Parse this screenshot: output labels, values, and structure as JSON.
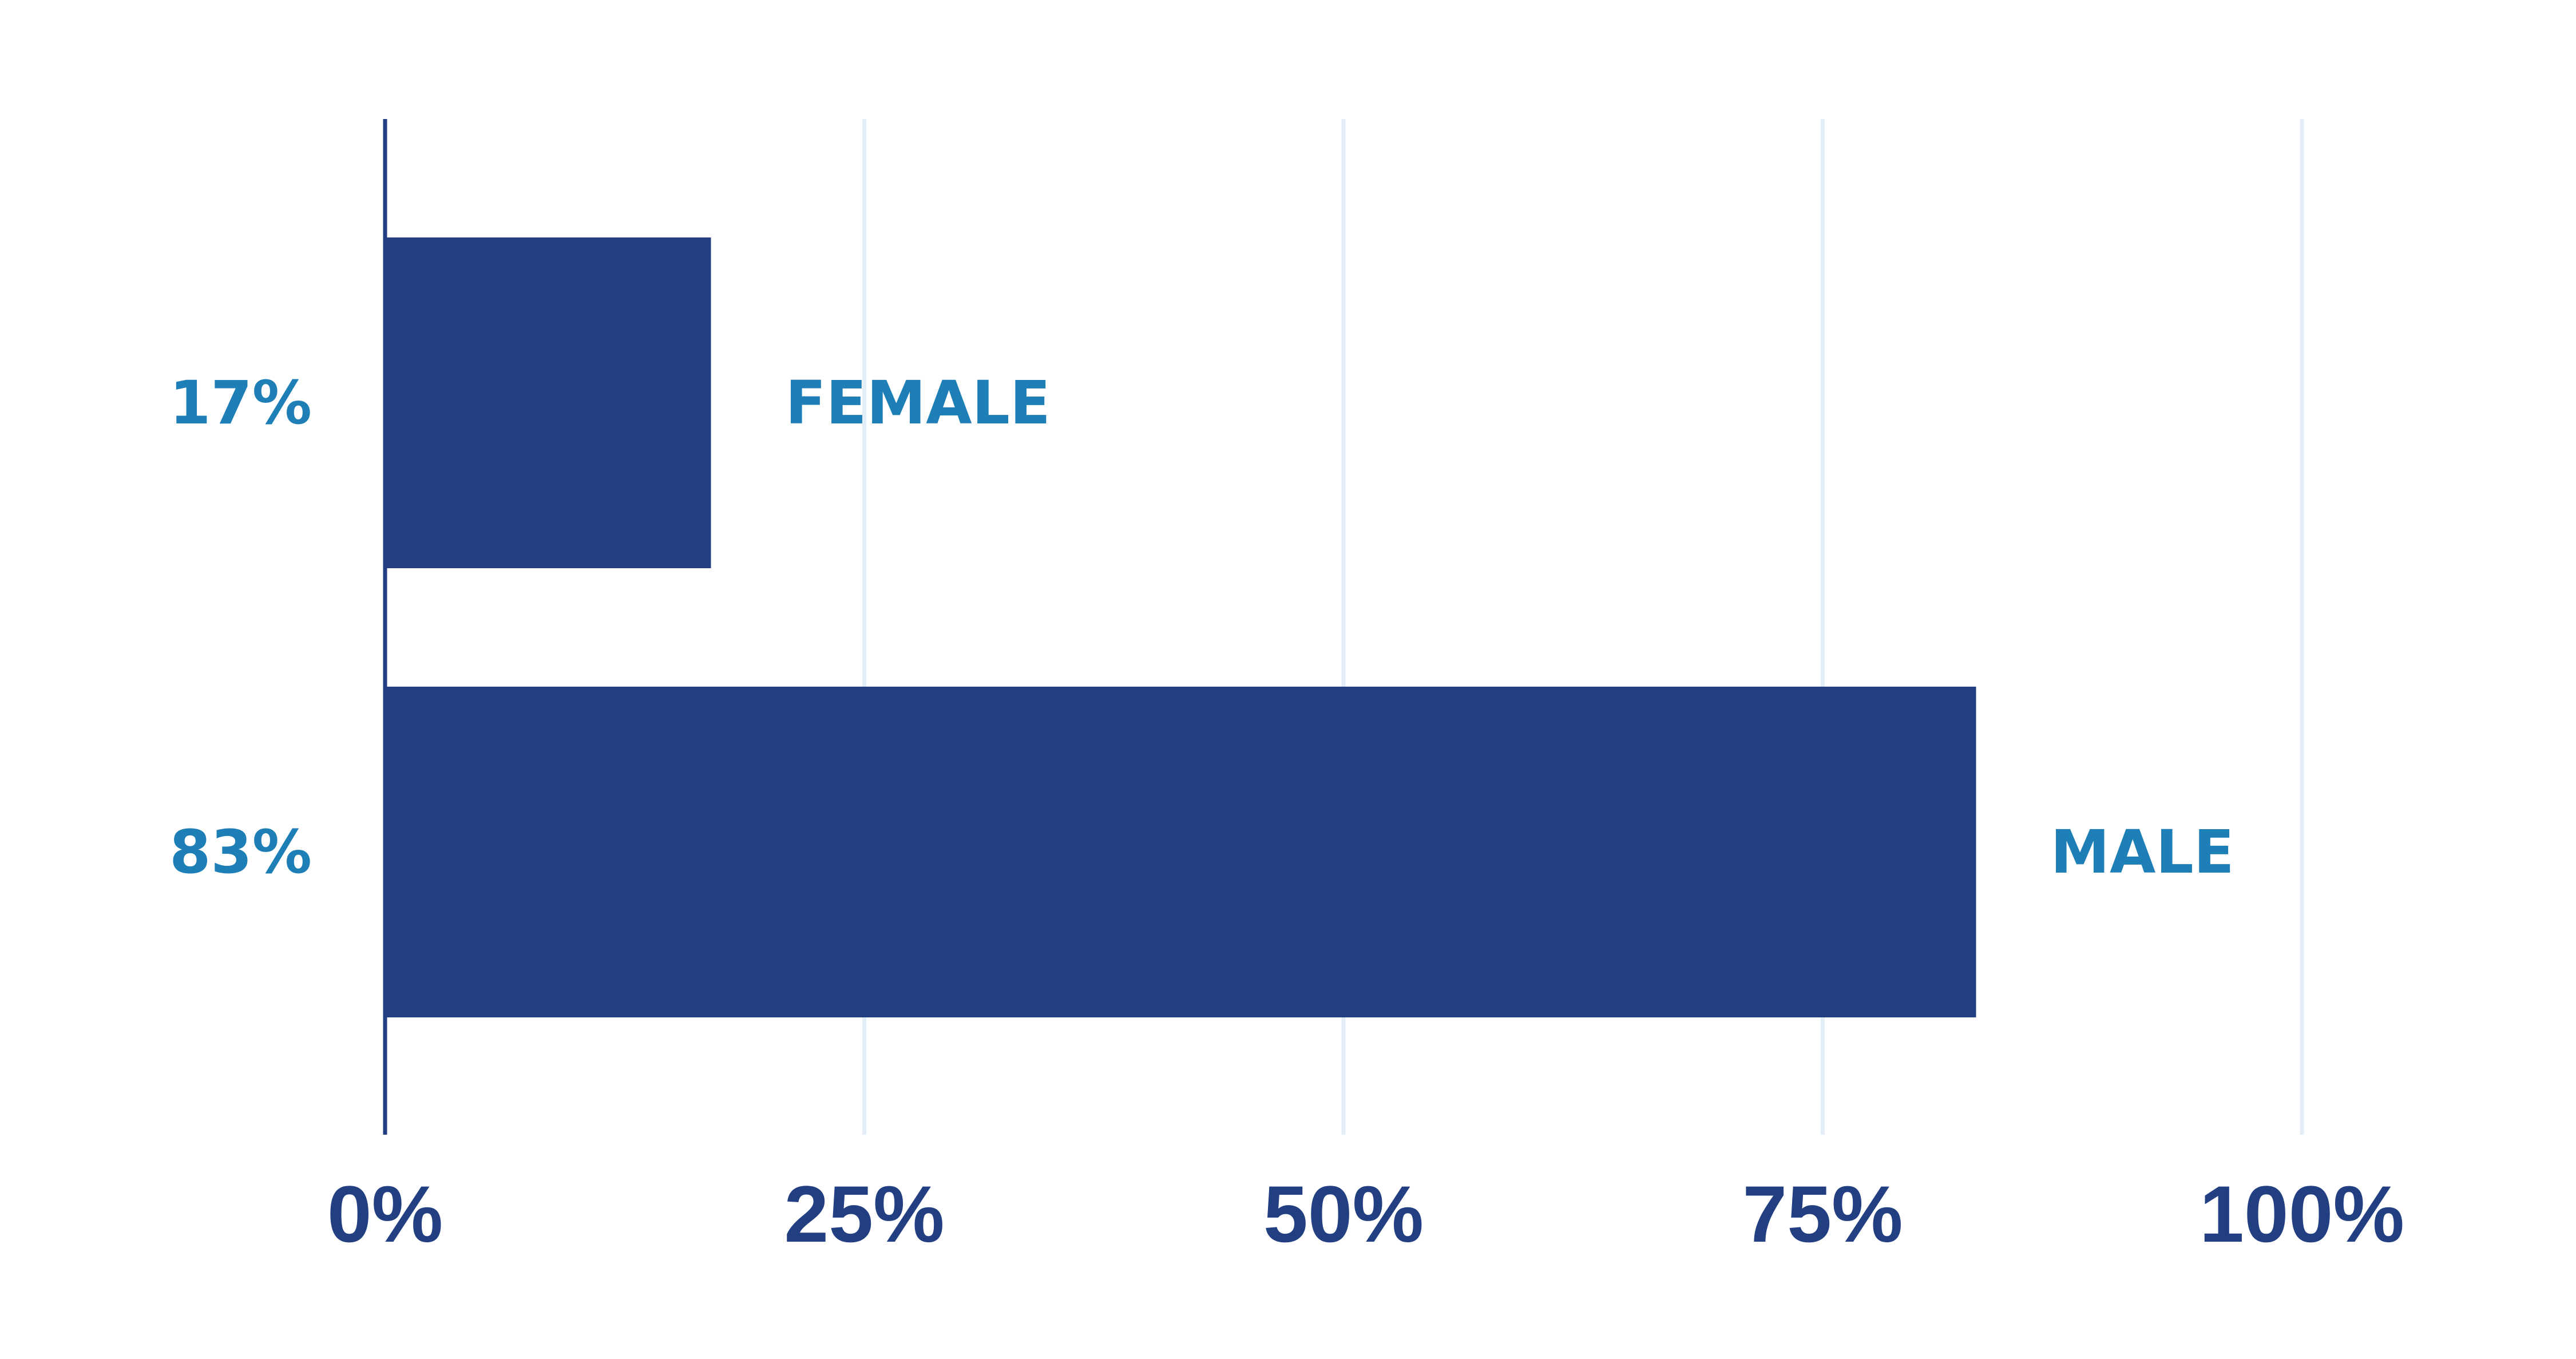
{
  "chart_data": {
    "type": "bar",
    "orientation": "horizontal",
    "categories": [
      "FEMALE",
      "MALE"
    ],
    "values": [
      17,
      83
    ],
    "value_labels": [
      "17%",
      "83%"
    ],
    "xlim": [
      0,
      100
    ],
    "x_ticks": [
      0,
      25,
      50,
      75,
      100
    ],
    "x_tick_labels": [
      "0%",
      "25%",
      "50%",
      "75%",
      "100%"
    ],
    "grid": true,
    "legend": "none",
    "colors": {
      "bar": "#223F81",
      "value_label": "#1E7FB6",
      "category_label": "#1E7FB6",
      "tick_label": "#223F81",
      "axis": "#223F81",
      "gridline": "#E3EEF8"
    }
  }
}
